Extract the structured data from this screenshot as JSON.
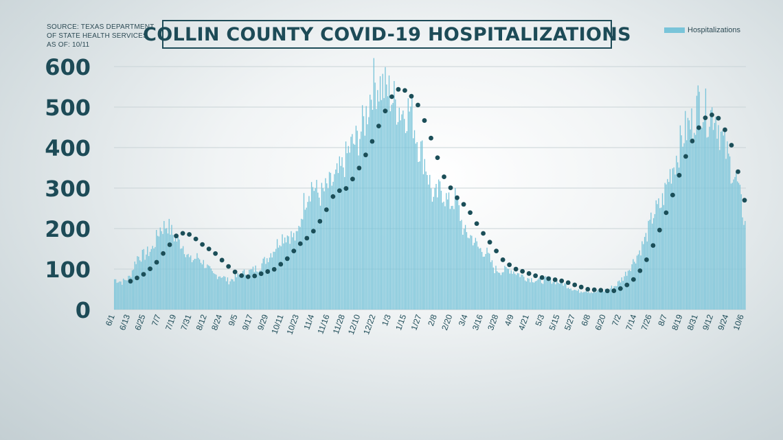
{
  "source": {
    "line1": "SOURCE: TEXAS DEPARTMENT",
    "line2": "OF STATE HEALTH SERVICES",
    "line3": "AS OF: 10/11"
  },
  "colors": {
    "bar": "#79c4d9",
    "trend": "#1b4e58",
    "text": "#1d4b57",
    "grid": "#c9d3d6"
  },
  "chart_data": {
    "type": "bar",
    "title": "COLLIN COUNTY COVID-19 HOSPITALIZATIONS",
    "legend": {
      "label": "Hospitalizations",
      "placement": "top-right"
    },
    "ylim": [
      0,
      600
    ],
    "y_ticks": [
      "0",
      "100",
      "200",
      "300",
      "400",
      "500",
      "600"
    ],
    "grid": true,
    "x_tick_labels": [
      "6/1",
      "6/13",
      "6/25",
      "7/7",
      "7/19",
      "7/31",
      "8/12",
      "8/24",
      "9/5",
      "9/17",
      "9/29",
      "10/11",
      "10/23",
      "11/4",
      "11/16",
      "11/28",
      "12/10",
      "12/22",
      "1/3",
      "1/15",
      "1/27",
      "2/8",
      "2/20",
      "3/4",
      "3/16",
      "3/28",
      "4/9",
      "4/21",
      "5/3",
      "5/15",
      "5/27",
      "6/8",
      "6/20",
      "7/2",
      "7/14",
      "7/26",
      "8/7",
      "8/19",
      "8/31",
      "9/12",
      "9/24",
      "10/6"
    ],
    "weekly_anchor_values": [
      75,
      68,
      80,
      130,
      135,
      150,
      200,
      210,
      175,
      160,
      120,
      130,
      110,
      85,
      85,
      70,
      80,
      90,
      95,
      105,
      125,
      150,
      180,
      185,
      175,
      270,
      310,
      280,
      300,
      320,
      350,
      400,
      420,
      470,
      560,
      555,
      540,
      510,
      490,
      495,
      410,
      360,
      270,
      300,
      260,
      275,
      190,
      180,
      150,
      140,
      100,
      95,
      100,
      90,
      80,
      75,
      70,
      75,
      70,
      65,
      55,
      45,
      48,
      42,
      45,
      50,
      60,
      80,
      110,
      140,
      180,
      240,
      260,
      330,
      380,
      440,
      460,
      520,
      480,
      490,
      420,
      360,
      310,
      210
    ],
    "trend_anchor_values": [
      70,
      85,
      110,
      150,
      190,
      185,
      160,
      140,
      110,
      85,
      80,
      90,
      100,
      125,
      160,
      185,
      230,
      290,
      300,
      350,
      410,
      480,
      545,
      540,
      500,
      420,
      330,
      280,
      250,
      200,
      160,
      120,
      100,
      90,
      80,
      75,
      70,
      60,
      50,
      48,
      45,
      55,
      80,
      130,
      200,
      280,
      370,
      440,
      485,
      470,
      400,
      270
    ]
  }
}
